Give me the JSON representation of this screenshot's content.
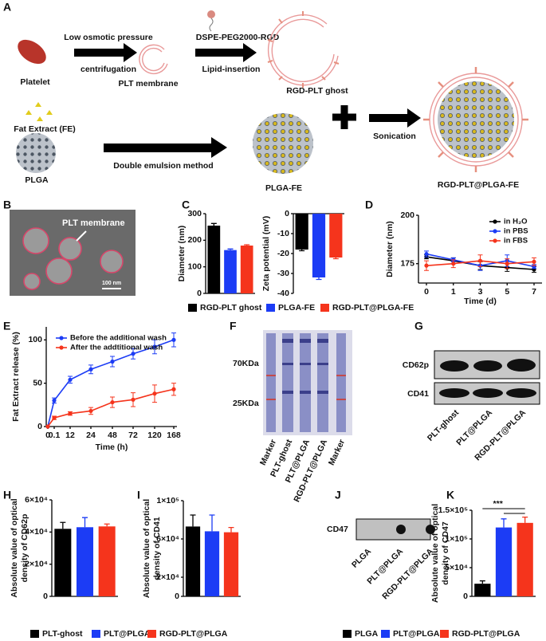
{
  "figure": {
    "panels": [
      "A",
      "B",
      "C",
      "D",
      "E",
      "F",
      "G",
      "H",
      "I",
      "J",
      "K"
    ],
    "schematic": {
      "step1_top": "Low osmotic pressure",
      "step1_bottom": "centrifugation",
      "platelet": "Platelet",
      "plt_membrane": "PLT membrane",
      "reagent": "DSPE-PEG2000-RGD",
      "step2": "Lipid-insertion",
      "rgd_ghost": "RGD-PLT ghost",
      "fe": "Fat Extract (FE)",
      "plga": "PLGA",
      "step3": "Double emulsion method",
      "plga_fe": "PLGA-FE",
      "step4": "Sonication",
      "product": "RGD-PLT@PLGA-FE"
    },
    "tem": {
      "label": "PLT membrane",
      "scale": "100 nm"
    },
    "gel": {
      "markers": [
        "70KDa",
        "25KDa"
      ],
      "lanes": [
        "Marker",
        "PLT-ghost",
        "PLT@PLGA",
        "RGD-PLT@PLGA",
        "Marker"
      ]
    },
    "western": {
      "rows": [
        "CD62p",
        "CD41"
      ],
      "lanes": [
        "PLT-ghost",
        "PLT@PLGA",
        "RGD-PLT@PLGA"
      ]
    },
    "dot_blot": {
      "row": "CD47",
      "lanes": [
        "PLGA",
        "PLT@PLGA",
        "RGD-PLT@PLGA"
      ]
    }
  },
  "chart_data": [
    {
      "type": "bar",
      "ylabel": "Diameter (nm)",
      "ylim": [
        0,
        300
      ],
      "yticks": [
        0,
        100,
        200,
        300
      ],
      "series": [
        {
          "name": "RGD-PLT ghost",
          "color": "#000000",
          "values": [
            255
          ],
          "errors": [
            8
          ]
        },
        {
          "name": "PLGA-FE",
          "color": "#1c3cf5",
          "values": [
            163
          ],
          "errors": [
            4
          ]
        },
        {
          "name": "RGD-PLT@PLGA-FE",
          "color": "#f5341c",
          "values": [
            180
          ],
          "errors": [
            3
          ]
        }
      ]
    },
    {
      "type": "bar",
      "ylabel": "Zeta potential (mV)",
      "ylim": [
        -40,
        0
      ],
      "yticks": [
        0,
        -10,
        -20,
        -30,
        -40
      ],
      "series": [
        {
          "color": "#000000",
          "values": [
            -18
          ],
          "errors": [
            0.6
          ]
        },
        {
          "color": "#1c3cf5",
          "values": [
            -32
          ],
          "errors": [
            1
          ]
        },
        {
          "color": "#f5341c",
          "values": [
            -22
          ],
          "errors": [
            0.6
          ]
        }
      ]
    },
    {
      "type": "line",
      "ylabel": "Diameter (nm)",
      "xlabel": "Time (d)",
      "categories": [
        "0",
        "1",
        "3",
        "5",
        "7"
      ],
      "ylim": [
        165,
        200
      ],
      "yticks": [
        175,
        200
      ],
      "series": [
        {
          "name": "in H₂O",
          "color": "#000000",
          "values": [
            178.5,
            176.5,
            174,
            173,
            172
          ],
          "errors": [
            1,
            1.5,
            2,
            2,
            1.5
          ]
        },
        {
          "name": "in PBS",
          "color": "#1c3cf5",
          "values": [
            180,
            177,
            174,
            176.5,
            173.5
          ],
          "errors": [
            1.5,
            1,
            2.5,
            3,
            1
          ]
        },
        {
          "name": "in FBS",
          "color": "#f5341c",
          "values": [
            174,
            175,
            176.5,
            175,
            176
          ],
          "errors": [
            2.5,
            2,
            3,
            2.5,
            2
          ]
        }
      ]
    },
    {
      "type": "line",
      "ylabel": "Fat Extract release (%)",
      "xlabel": "Time (h)",
      "categories": [
        "0",
        "0.1",
        "12",
        "24",
        "48",
        "72",
        "120",
        "168"
      ],
      "ylim": [
        0,
        115
      ],
      "yticks": [
        0,
        50,
        100
      ],
      "series": [
        {
          "name": "Before the additional wash",
          "color": "#1c3cf5",
          "values": [
            0,
            30,
            54,
            66,
            75,
            84,
            92,
            100
          ],
          "errors": [
            0,
            3,
            4,
            5,
            6,
            6,
            8,
            8
          ]
        },
        {
          "name": "After the addtitional wash",
          "color": "#f5341c",
          "values": [
            0,
            10,
            15,
            18,
            28,
            31,
            38,
            43
          ],
          "errors": [
            0,
            2,
            2,
            4,
            6,
            8,
            10,
            7
          ]
        }
      ]
    },
    {
      "type": "bar",
      "ylabel": [
        "Absolute value of optical",
        "density of CD62p"
      ],
      "ylim": [
        0,
        60000
      ],
      "yticks": [
        0,
        {
          "value": 20000,
          "label": "2×10⁴"
        },
        {
          "value": 40000,
          "label": "4×10⁴"
        },
        {
          "value": 60000,
          "label": "6×10⁴"
        }
      ],
      "series": [
        {
          "name": "PLT-ghost",
          "color": "#000000",
          "values": [
            42000
          ],
          "errors": [
            4000
          ]
        },
        {
          "name": "PLT@PLGA",
          "color": "#1c3cf5",
          "values": [
            43000
          ],
          "errors": [
            6000
          ]
        },
        {
          "name": "RGD-PLT@PLGA",
          "color": "#f5341c",
          "values": [
            43500
          ],
          "errors": [
            1500
          ]
        }
      ]
    },
    {
      "type": "bar",
      "ylabel": [
        "Absolute value of optical",
        "density of CD41"
      ],
      "ylim": [
        0,
        100000
      ],
      "yticks": [
        0,
        {
          "value": 20000,
          "label": "2×10⁴"
        },
        {
          "value": 60000,
          "label": "6×10⁴"
        },
        {
          "value": 100000,
          "label": "1×10⁵"
        }
      ],
      "series": [
        {
          "color": "#000000",
          "values": [
            73000
          ],
          "errors": [
            12000
          ]
        },
        {
          "color": "#1c3cf5",
          "values": [
            68000
          ],
          "errors": [
            17000
          ]
        },
        {
          "color": "#f5341c",
          "values": [
            67000
          ],
          "errors": [
            5000
          ]
        }
      ]
    },
    {
      "type": "bar",
      "ylabel": [
        "Absolute value of optical",
        "density of CD47"
      ],
      "ylim": [
        0,
        150000
      ],
      "yticks": [
        0,
        {
          "value": 50000,
          "label": "5×10⁴"
        },
        {
          "value": 100000,
          "label": "1×10⁵"
        },
        {
          "value": 150000,
          "label": "1.5×10⁵"
        }
      ],
      "annotation": "***",
      "series": [
        {
          "name": "PLGA",
          "color": "#000000",
          "values": [
            22000
          ],
          "errors": [
            5000
          ]
        },
        {
          "name": "PLT@PLGA",
          "color": "#1c3cf5",
          "values": [
            120000
          ],
          "errors": [
            15000
          ]
        },
        {
          "name": "RGD-PLT@PLGA",
          "color": "#f5341c",
          "values": [
            128000
          ],
          "errors": [
            10000
          ]
        }
      ]
    }
  ]
}
